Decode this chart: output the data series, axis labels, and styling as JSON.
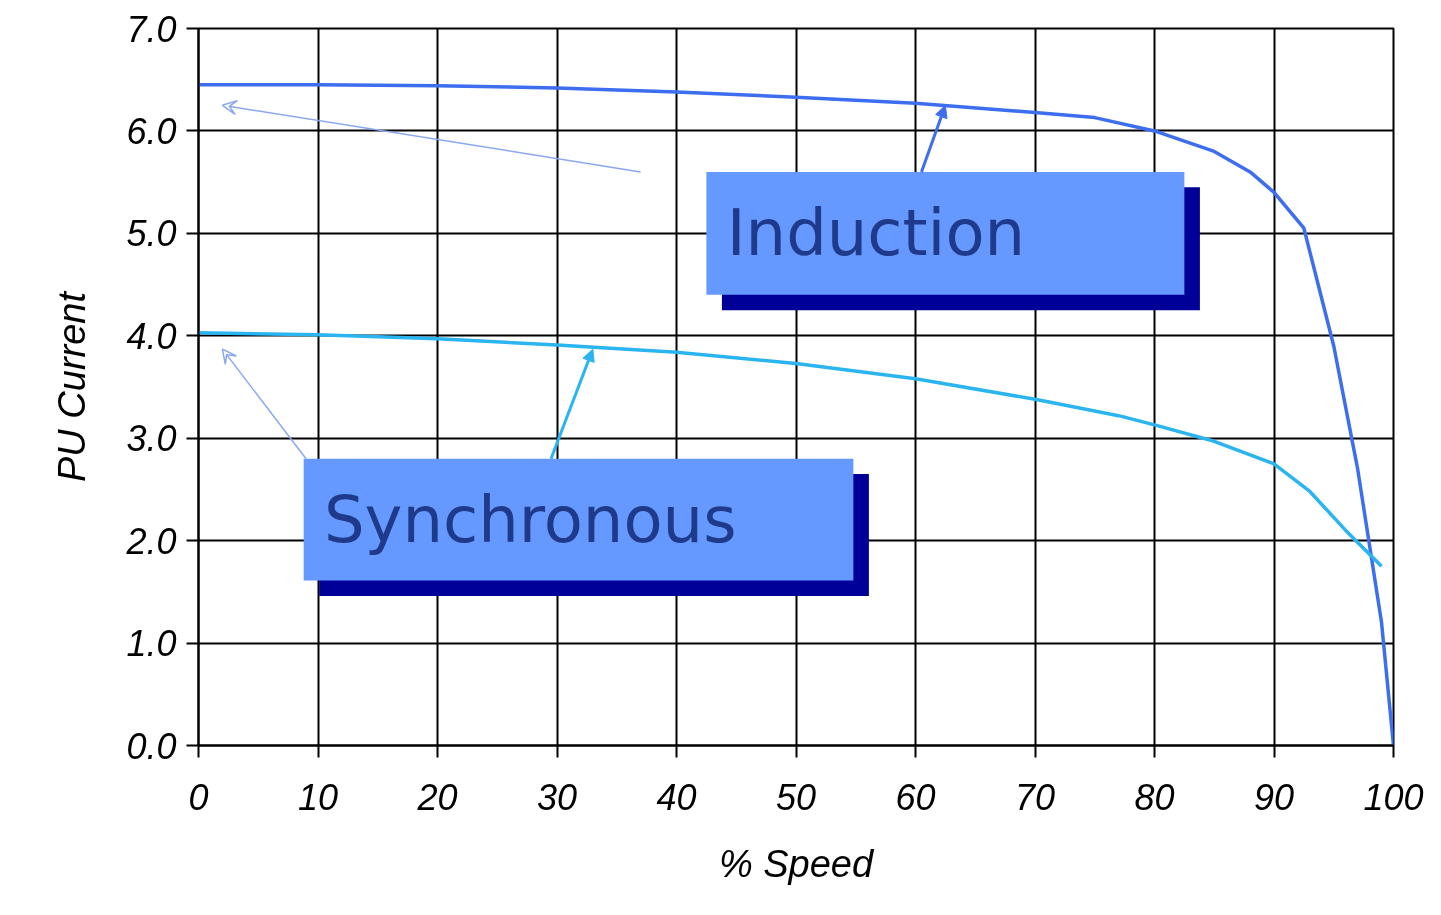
{
  "chart_data": {
    "type": "line",
    "xlabel": "% Speed",
    "ylabel": "PU Current",
    "xlim": [
      0,
      100
    ],
    "ylim": [
      0,
      7
    ],
    "xticks": [
      0,
      10,
      20,
      30,
      40,
      50,
      60,
      70,
      80,
      90,
      100
    ],
    "yticks": [
      {
        "value": 0,
        "label": "0.0"
      },
      {
        "value": 1,
        "label": "1.0"
      },
      {
        "value": 2,
        "label": "2.0"
      },
      {
        "value": 3,
        "label": "3.0"
      },
      {
        "value": 4,
        "label": "4.0"
      },
      {
        "value": 5,
        "label": "5.0"
      },
      {
        "value": 6,
        "label": "6.0"
      },
      {
        "value": 7,
        "label": "7.0"
      }
    ],
    "grid": true,
    "marker": "none",
    "line_style": "solid",
    "series": [
      {
        "color": "#3d6ef0",
        "x": [
          0,
          10,
          20,
          30,
          40,
          50,
          60,
          70,
          75,
          80,
          85,
          88,
          90,
          92.5,
          95,
          97,
          99,
          100
        ],
        "values": [
          6.45,
          6.45,
          6.44,
          6.42,
          6.38,
          6.33,
          6.27,
          6.18,
          6.13,
          6.0,
          5.8,
          5.6,
          5.4,
          5.05,
          3.9,
          2.7,
          1.2,
          0
        ]
      },
      {
        "color": "#2bb5f0",
        "x": [
          0,
          10,
          20,
          30,
          40,
          50,
          60,
          70,
          77,
          80,
          85,
          90,
          93,
          96,
          99
        ],
        "values": [
          4.03,
          4.01,
          3.97,
          3.91,
          3.84,
          3.73,
          3.58,
          3.38,
          3.22,
          3.13,
          2.97,
          2.75,
          2.48,
          2.1,
          1.75
        ]
      }
    ],
    "annotations": [
      {
        "text": "Induction",
        "x": 62.5,
        "y": 6.25
      },
      {
        "text": "Synchronous",
        "x": 33,
        "y": 3.87
      }
    ]
  }
}
